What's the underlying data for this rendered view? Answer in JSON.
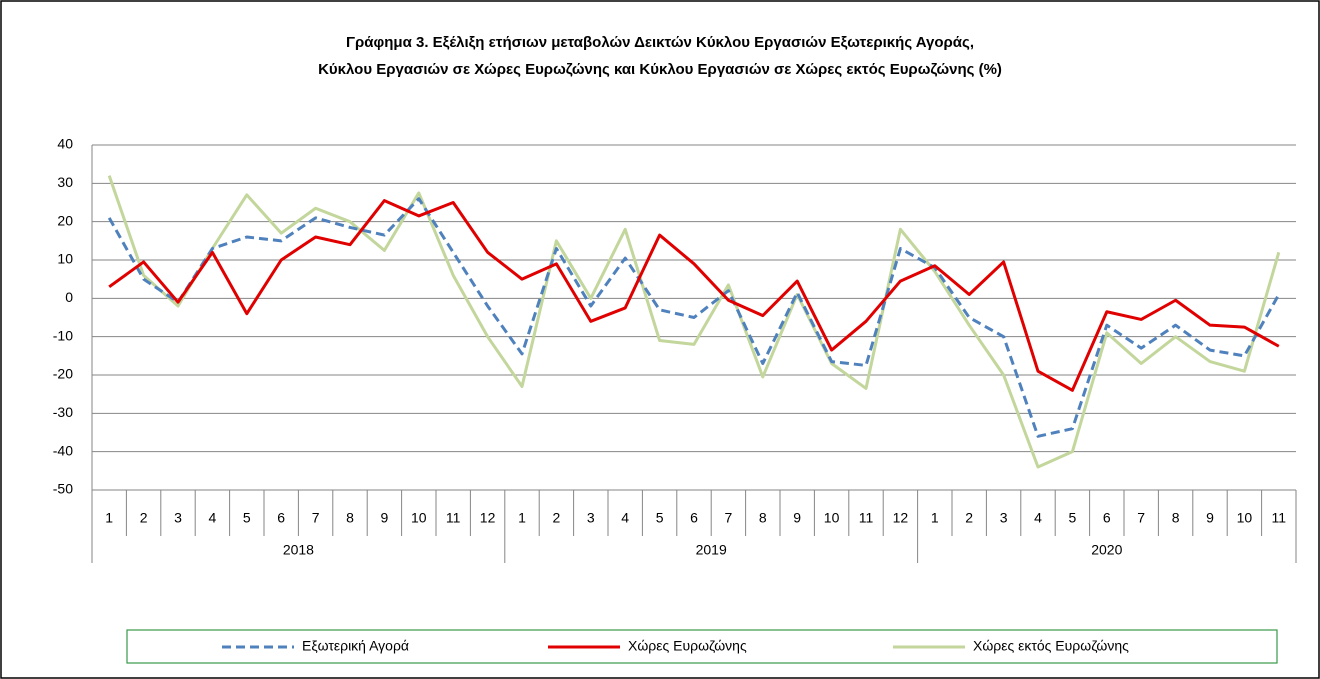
{
  "chart_data": {
    "type": "line",
    "title": [
      "Γράφημα 3. Εξέλιξη  ετήσιων μεταβολών Δεικτών Κύκλου Εργασιών Εξωτερικής Αγοράς,",
      "Κύκλου Εργασιών σε Χώρες Ευρωζώνης και Κύκλου Εργασιών σε Χώρες εκτός Ευρωζώνης (%)"
    ],
    "groups": [
      {
        "name": "2018",
        "categories": [
          "1",
          "2",
          "3",
          "4",
          "5",
          "6",
          "7",
          "8",
          "9",
          "10",
          "11",
          "12"
        ]
      },
      {
        "name": "2019",
        "categories": [
          "1",
          "2",
          "3",
          "4",
          "5",
          "6",
          "7",
          "8",
          "9",
          "10",
          "11",
          "12"
        ]
      },
      {
        "name": "2020",
        "categories": [
          "1",
          "2",
          "3",
          "4",
          "5",
          "6",
          "7",
          "8",
          "9",
          "10",
          "11"
        ]
      }
    ],
    "series": [
      {
        "name": "Εξωτερική Αγορά",
        "color": "#4f81bd",
        "dash": true,
        "values": [
          21,
          5,
          -1,
          13,
          16,
          15,
          21,
          18.5,
          16.5,
          26,
          12,
          -2,
          -14.5,
          13,
          -2,
          10.5,
          -3,
          -5,
          2,
          -17,
          1.5,
          -16.5,
          -17.5,
          13,
          8,
          -5,
          -10,
          -36,
          -34,
          -7,
          -13,
          -7,
          -13.5,
          -15,
          1
        ]
      },
      {
        "name": "Χώρες Ευρωζώνης",
        "color": "#e00000",
        "dash": false,
        "values": [
          3,
          9.5,
          -1,
          12,
          -4,
          10,
          16,
          14,
          25.5,
          21.5,
          25,
          12,
          5,
          9,
          -6,
          -2.5,
          16.5,
          9,
          -0.5,
          -4.5,
          4.5,
          -13.5,
          -6,
          4.5,
          8.5,
          1,
          9.5,
          -19,
          -24,
          -3.5,
          -5.5,
          -0.5,
          -7,
          -7.5,
          -12.5
        ]
      },
      {
        "name": "Χώρες εκτός Ευρωζώνης",
        "color": "#c3d69b",
        "dash": false,
        "values": [
          32,
          6,
          -2,
          13,
          27,
          17,
          23.5,
          20,
          12.5,
          27.5,
          6,
          -10,
          -23,
          15,
          0,
          18,
          -11,
          -12,
          3.5,
          -20.5,
          1,
          -17,
          -23.5,
          18,
          7,
          -7,
          -20,
          -44,
          -40,
          -9,
          -17,
          -10,
          -16.5,
          -19,
          12
        ]
      }
    ],
    "ylim": [
      -50,
      40
    ],
    "yticks": [
      -50,
      -40,
      -30,
      -20,
      -10,
      0,
      10,
      20,
      30,
      40
    ],
    "grid": true
  }
}
